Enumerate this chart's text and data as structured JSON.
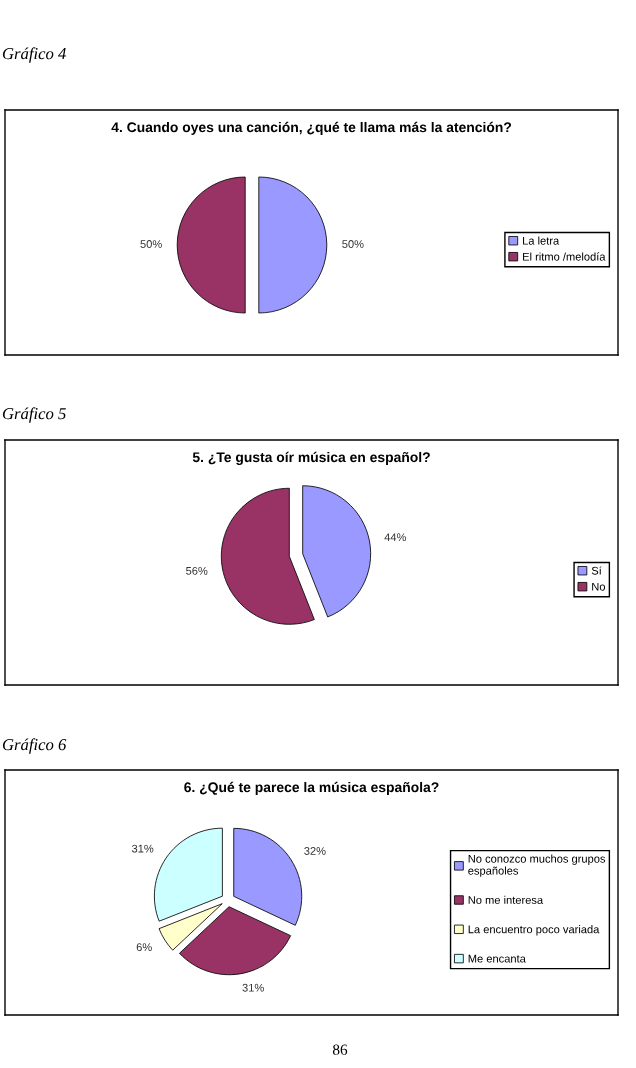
{
  "chart_data": [
    {
      "type": "pie",
      "title": "4. Cuando oyes una canción, ¿qué te llama más la atención?",
      "categories": [
        "La letra",
        "El ritmo /melodía"
      ],
      "values": [
        50,
        50
      ],
      "colors": [
        "#9999ff",
        "#993366"
      ],
      "value_labels": [
        "50%",
        "50%"
      ],
      "legend": "right",
      "annotations": [
        "Gráfico 4"
      ]
    },
    {
      "type": "pie",
      "title": "5. ¿Te gusta oír música en español?",
      "categories": [
        "Sí",
        "No"
      ],
      "values": [
        44,
        56
      ],
      "colors": [
        "#9999ff",
        "#993366"
      ],
      "value_labels": [
        "44%",
        "56%"
      ],
      "legend": "right",
      "annotations": [
        "Gráfico 5"
      ]
    },
    {
      "type": "pie",
      "title": "6. ¿Qué te parece la música española?",
      "categories": [
        "No conozco muchos grupos\nespañoles",
        "No me interesa",
        "La encuentro poco variada",
        "Me encanta"
      ],
      "values": [
        32,
        31,
        6,
        31
      ],
      "colors": [
        "#9999ff",
        "#993366",
        "#ffffcc",
        "#ccffff"
      ],
      "value_labels": [
        "32%",
        "31%",
        "6%",
        "31%"
      ],
      "legend": "right",
      "annotations": [
        "Gráfico 6",
        "86"
      ]
    }
  ]
}
